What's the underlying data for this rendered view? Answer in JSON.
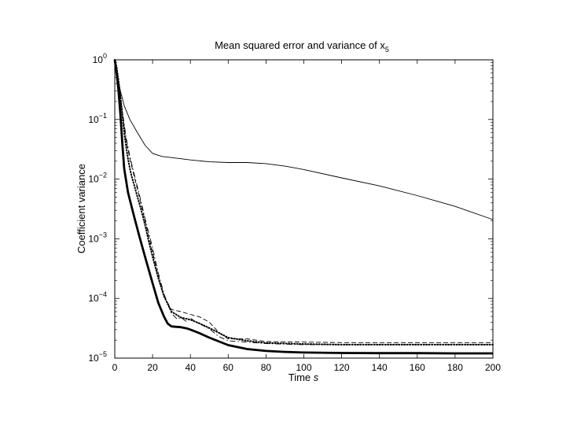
{
  "chart_data": {
    "type": "line",
    "title_main": "Mean squared error and variance of x",
    "title_sub": "5",
    "xlabel_main": "Time ",
    "xlabel_var": "s",
    "ylabel": "Coefficient variance",
    "xlim": [
      0,
      200
    ],
    "ylim": [
      1e-05,
      1
    ],
    "yscale": "log",
    "grid": false,
    "x_ticks": [
      0,
      20,
      40,
      60,
      80,
      100,
      120,
      140,
      160,
      180,
      200
    ],
    "y_ticks": [
      {
        "base": "10",
        "exp": "0",
        "value": 1
      },
      {
        "base": "10",
        "exp": "−1",
        "value": 0.1
      },
      {
        "base": "10",
        "exp": "−2",
        "value": 0.01
      },
      {
        "base": "10",
        "exp": "−3",
        "value": 0.001
      },
      {
        "base": "10",
        "exp": "−4",
        "value": 0.0001
      },
      {
        "base": "10",
        "exp": "−5",
        "value": 1e-05
      }
    ],
    "series": [
      {
        "style": "thin-solid",
        "x": [
          0,
          1,
          2,
          3,
          5,
          8,
          12,
          16,
          20,
          25,
          30,
          40,
          50,
          60,
          70,
          80,
          90,
          100,
          120,
          140,
          160,
          180,
          200
        ],
        "y": [
          1,
          0.7,
          0.42,
          0.3,
          0.17,
          0.1,
          0.06,
          0.037,
          0.027,
          0.024,
          0.023,
          0.021,
          0.0195,
          0.019,
          0.019,
          0.0182,
          0.0165,
          0.0145,
          0.0105,
          0.0077,
          0.0053,
          0.0035,
          0.0021
        ]
      },
      {
        "style": "thick-solid",
        "x": [
          0,
          1,
          2,
          3,
          4,
          5,
          7,
          10,
          13,
          16,
          20,
          23,
          26,
          28,
          30,
          32,
          35,
          38,
          40,
          45,
          50,
          60,
          70,
          80,
          90,
          100,
          120,
          140,
          160,
          180,
          200
        ],
        "y": [
          1,
          0.6,
          0.3,
          0.12,
          0.04,
          0.015,
          0.006,
          0.0025,
          0.0011,
          0.0005,
          0.00018,
          8.5e-05,
          5e-05,
          3.8e-05,
          3.4e-05,
          3.35e-05,
          3.3e-05,
          3.15e-05,
          3e-05,
          2.6e-05,
          2.2e-05,
          1.65e-05,
          1.42e-05,
          1.32e-05,
          1.27e-05,
          1.24e-05,
          1.22e-05,
          1.21e-05,
          1.21e-05,
          1.2e-05,
          1.2e-05
        ]
      },
      {
        "style": "dashed",
        "x": [
          0,
          2,
          4,
          6,
          8,
          10,
          13,
          16,
          20,
          23,
          26,
          30,
          35,
          40,
          45,
          50,
          55,
          60,
          70,
          80,
          100,
          120,
          140,
          160,
          180,
          200
        ],
        "y": [
          1,
          0.4,
          0.12,
          0.045,
          0.022,
          0.012,
          0.005,
          0.002,
          0.0006,
          0.00024,
          0.00011,
          6.5e-05,
          6e-05,
          5.4e-05,
          4.9e-05,
          4e-05,
          2.7e-05,
          2.1e-05,
          2.1e-05,
          1.9e-05,
          1.85e-05,
          1.82e-05,
          1.82e-05,
          1.82e-05,
          1.82e-05,
          1.82e-05
        ]
      },
      {
        "style": "dashdot",
        "x": [
          0,
          2,
          4,
          6,
          8,
          10,
          13,
          16,
          20,
          23,
          26,
          30,
          33,
          35,
          38,
          40,
          43,
          46,
          50,
          55,
          60,
          70,
          80,
          100,
          120,
          140,
          160,
          180,
          200
        ],
        "y": [
          1,
          0.45,
          0.14,
          0.05,
          0.024,
          0.013,
          0.0055,
          0.0022,
          0.0007,
          0.00027,
          0.00012,
          5.6e-05,
          4.5e-05,
          4.8e-05,
          4.1e-05,
          4.7e-05,
          4e-05,
          3.6e-05,
          3.1e-05,
          2.3e-05,
          1.95e-05,
          1.85e-05,
          1.75e-05,
          1.68e-05,
          1.68e-05,
          1.68e-05,
          1.68e-05,
          1.68e-05,
          1.68e-05
        ]
      },
      {
        "style": "dotted",
        "x": [
          0,
          1,
          2,
          3,
          4,
          5,
          6,
          7,
          8,
          9,
          10,
          12,
          14,
          16,
          18,
          20,
          23,
          26,
          30,
          35,
          40,
          45,
          50,
          60,
          70,
          80,
          100,
          120,
          140,
          160,
          180,
          200
        ],
        "y": [
          1,
          0.75,
          0.45,
          0.25,
          0.12,
          0.06,
          0.035,
          0.022,
          0.015,
          0.011,
          0.0085,
          0.005,
          0.003,
          0.0017,
          0.0009,
          0.0005,
          0.00022,
          0.00011,
          6e-05,
          4.8e-05,
          4.4e-05,
          3.8e-05,
          3.2e-05,
          2.2e-05,
          1.95e-05,
          1.8e-05,
          1.72e-05,
          1.68e-05,
          1.68e-05,
          1.68e-05,
          1.68e-05,
          1.68e-05
        ]
      }
    ]
  }
}
